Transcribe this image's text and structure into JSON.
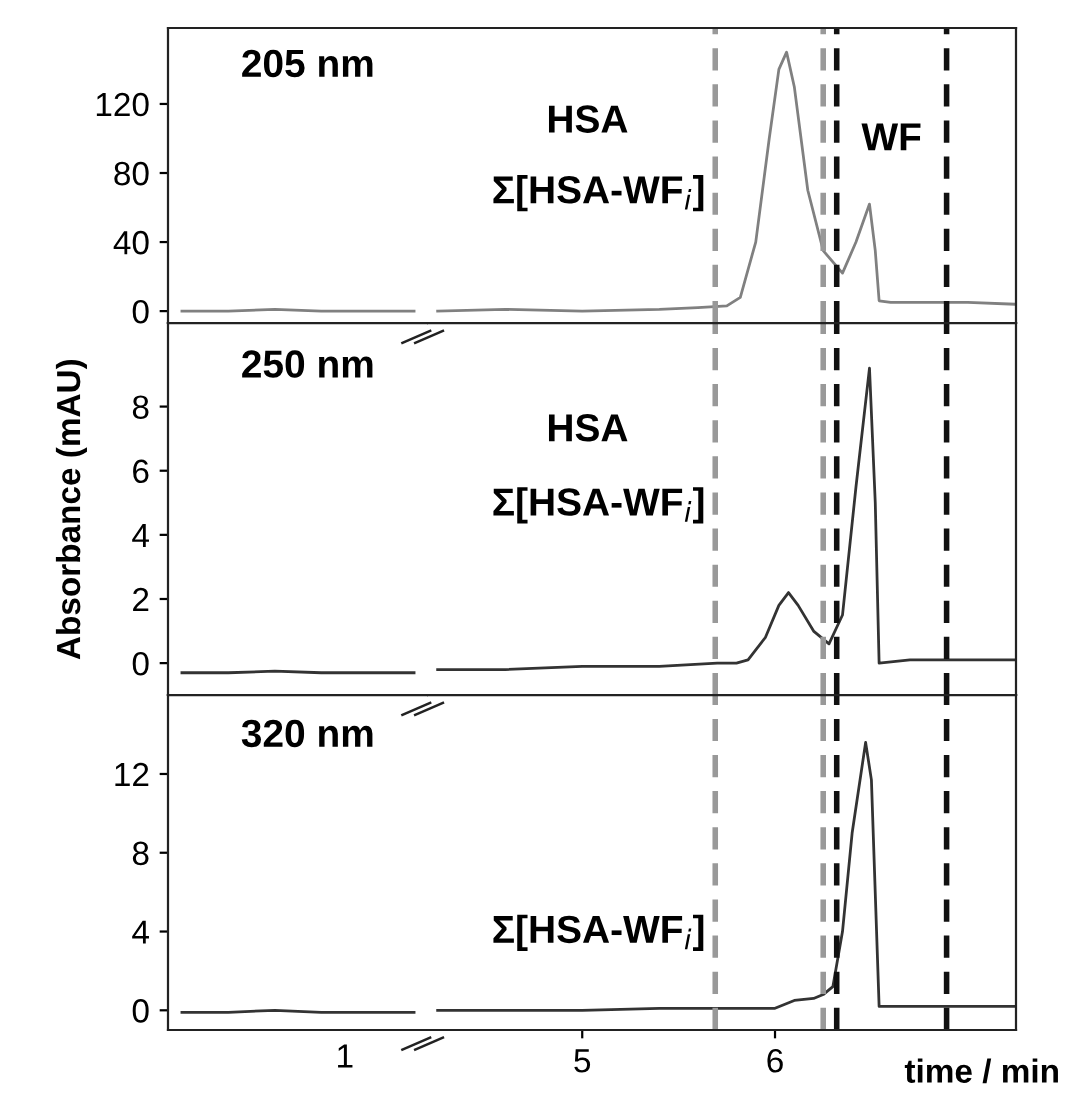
{
  "chart_data": [
    {
      "type": "line",
      "title": "205 nm",
      "categories": [
        null,
        null,
        null,
        null,
        null,
        null
      ],
      "ylim": [
        -7,
        164
      ],
      "yticks": [
        0,
        40,
        80,
        120
      ],
      "series": [
        {
          "color": "#808080",
          "values": [
            0,
            0,
            1,
            0,
            0,
            0
          ]
        }
      ]
    },
    {
      "type": "line",
      "xlim": [
        4.2,
        7.25
      ],
      "ylim": [
        -7,
        164
      ],
      "tick_labels": false,
      "annotations": [
        "HSA",
        "Σ[HSA-WF$_{i}$]",
        "WF"
      ],
      "ref_lines": [
        {
          "axis": "x",
          "value": 5.69,
          "color": "#999999",
          "line_style": "dashed"
        },
        {
          "axis": "x",
          "value": 6.25,
          "color": "#999999",
          "line_style": "dashed"
        },
        {
          "axis": "x",
          "value": 6.32,
          "color": "#111111",
          "line_style": "dashed"
        },
        {
          "axis": "x",
          "value": 6.89,
          "color": "#111111",
          "line_style": "dashed"
        }
      ],
      "series": [
        {
          "color": "#808080",
          "x": [
            4.25,
            4.6,
            5.0,
            5.4,
            5.6,
            5.75,
            5.82,
            5.9,
            5.97,
            6.02,
            6.06,
            6.1,
            6.17,
            6.25,
            6.35,
            6.42,
            6.49,
            6.52,
            6.54,
            6.6,
            6.8,
            7.0,
            7.24
          ],
          "values": [
            0,
            1,
            0,
            1,
            2,
            3,
            8,
            40,
            100,
            140,
            150,
            130,
            70,
            35,
            22,
            40,
            62,
            35,
            6,
            5,
            5,
            5,
            4
          ]
        }
      ]
    },
    {
      "type": "line",
      "title": "250 nm",
      "ylabel": "Absorbance (mAU)",
      "categories": [
        null,
        null,
        null,
        null,
        null,
        null
      ],
      "ylim": [
        -1,
        10.6
      ],
      "yticks": [
        0,
        2,
        4,
        6,
        8
      ],
      "series": [
        {
          "color": "#333333",
          "values": [
            -0.3,
            -0.3,
            -0.25,
            -0.3,
            -0.3,
            -0.3
          ]
        }
      ]
    },
    {
      "type": "line",
      "xlim": [
        4.2,
        7.25
      ],
      "ylim": [
        -1,
        10.6
      ],
      "tick_labels": false,
      "annotations": [
        "HSA",
        "Σ[HSA-WF$_{i}$]"
      ],
      "ref_lines": [
        {
          "axis": "x",
          "value": 5.69,
          "color": "#999999",
          "line_style": "dashed"
        },
        {
          "axis": "x",
          "value": 6.25,
          "color": "#999999",
          "line_style": "dashed"
        },
        {
          "axis": "x",
          "value": 6.32,
          "color": "#111111",
          "line_style": "dashed"
        },
        {
          "axis": "x",
          "value": 6.89,
          "color": "#111111",
          "line_style": "dashed"
        }
      ],
      "series": [
        {
          "color": "#333333",
          "x": [
            4.25,
            4.6,
            5.0,
            5.4,
            5.7,
            5.8,
            5.86,
            5.95,
            6.02,
            6.07,
            6.12,
            6.2,
            6.28,
            6.35,
            6.42,
            6.49,
            6.52,
            6.54,
            6.7,
            7.0,
            7.24
          ],
          "values": [
            -0.2,
            -0.2,
            -0.1,
            -0.1,
            0,
            0,
            0.1,
            0.8,
            1.8,
            2.2,
            1.8,
            1.0,
            0.6,
            1.5,
            5.5,
            9.2,
            5,
            0,
            0.1,
            0.1,
            0.1
          ]
        }
      ]
    },
    {
      "type": "line",
      "title": "320 nm",
      "categories": [
        null,
        null,
        null,
        null,
        null,
        null
      ],
      "ylim": [
        -1,
        16
      ],
      "yticks": [
        0,
        4,
        8,
        12
      ],
      "annotations": [
        "1"
      ],
      "series": [
        {
          "color": "#333333",
          "values": [
            -0.1,
            -0.1,
            0,
            -0.1,
            -0.1,
            -0.1
          ]
        }
      ]
    },
    {
      "type": "line",
      "xlabel": "time / min",
      "xlim": [
        4.2,
        7.25
      ],
      "xticks": [
        5,
        6
      ],
      "ylim": [
        -1,
        16
      ],
      "tick_labels": "x",
      "annotations": [
        "Σ[HSA-WF$_{i}$]"
      ],
      "ref_lines": [
        {
          "axis": "x",
          "value": 5.69,
          "color": "#999999",
          "line_style": "dashed"
        },
        {
          "axis": "x",
          "value": 6.25,
          "color": "#999999",
          "line_style": "dashed"
        },
        {
          "axis": "x",
          "value": 6.32,
          "color": "#111111",
          "line_style": "dashed"
        },
        {
          "axis": "x",
          "value": 6.89,
          "color": "#111111",
          "line_style": "dashed"
        }
      ],
      "series": [
        {
          "color": "#333333",
          "x": [
            4.25,
            4.6,
            5.0,
            5.4,
            5.7,
            6.0,
            6.1,
            6.2,
            6.25,
            6.3,
            6.35,
            6.4,
            6.47,
            6.5,
            6.54,
            6.6,
            7.0,
            7.24
          ],
          "values": [
            0,
            0,
            0,
            0.1,
            0.1,
            0.1,
            0.5,
            0.6,
            0.8,
            1.2,
            4,
            9,
            13.6,
            11.7,
            0.2,
            0.2,
            0.2,
            0.2
          ]
        }
      ]
    }
  ]
}
